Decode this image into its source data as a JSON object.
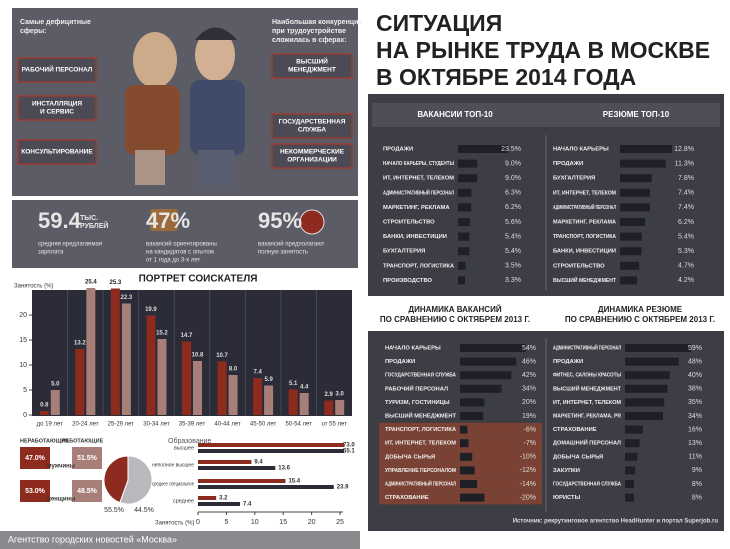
{
  "title": [
    "СИТУАЦИЯ",
    "НА РЫНКЕ ТРУДА В МОСКВЕ",
    "В ОКТЯБРЕ 2014 ГОДА"
  ],
  "deficit": {
    "heading": [
      "Самые дефицитные",
      "сферы:"
    ],
    "items": [
      [
        "РАБОЧИЙ ПЕРСОНАЛ"
      ],
      [
        "ИНСТАЛЛЯЦИЯ",
        "И СЕРВИС"
      ],
      [
        "КОНСУЛЬТИРОВАНИЕ"
      ]
    ]
  },
  "competition": {
    "heading": [
      "Наибольшая конкуренция",
      "при трудоустройстве",
      "сложилась в сферах:"
    ],
    "items": [
      [
        "ВЫСШИЙ",
        "МЕНЕДЖМЕНТ"
      ],
      [
        "ГОСУДАРСТВЕННАЯ",
        "СЛУЖБА"
      ],
      [
        "НЕКОММЕРЧЕСКИЕ",
        "ОРГАНИЗАЦИИ"
      ]
    ]
  },
  "stats": [
    {
      "value": "59.4",
      "unit": [
        "ТЫС.",
        "РУБЛЕЙ"
      ],
      "caption": [
        "средняя предлагаемая",
        "зарплата"
      ]
    },
    {
      "value": "47%",
      "caption": [
        "вакансий ориентированы",
        "на кандидатов с опытом",
        "от 1 года до 3-х лет"
      ]
    },
    {
      "value": "95%",
      "caption": [
        "вакансий предполагают",
        "полную занятость"
      ]
    }
  ],
  "gender": {
    "rows": [
      {
        "label": "мужчины",
        "values": [
          "47.0%",
          "51.5%"
        ]
      },
      {
        "label": "женщины",
        "values": [
          "53.0%",
          "48.5%"
        ]
      }
    ]
  },
  "source": "Источник: рекрутинговое агентство HeadHunter и портал Superjob.ru",
  "footer": "Агентство городских новостей «Москва»",
  "chart_data": [
    {
      "type": "hbar",
      "title": "ВАКАНСИИ ТОП-10",
      "color": "#1f2027",
      "categories": [
        "ПРОДАЖИ",
        "НАЧАЛО КАРЬЕРЫ, СТУДЕНТЫ",
        "ИТ, ИНТЕРНЕТ, ТЕЛЕКОМ",
        "АДМИНИСТРАТИВНЫЙ ПЕРСОНАЛ",
        "МАРКЕТИНГ, РЕКЛАМА",
        "СТРОИТЕЛЬСТВО",
        "БАНКИ, ИНВЕСТИЦИИ",
        "БУХГАЛТЕРИЯ",
        "ТРАНСПОРТ, ЛОГИСТИКА",
        "ПРОИЗВОДСТВО"
      ],
      "values": [
        23.5,
        9.0,
        9.0,
        6.3,
        6.2,
        5.6,
        5.4,
        5.4,
        3.5,
        3.3
      ],
      "value_labels": [
        "23.5%",
        "9.0%",
        "9.0%",
        "6.3%",
        "6.2%",
        "5.6%",
        "5.4%",
        "5.4%",
        "3.5%",
        "3.3%"
      ]
    },
    {
      "type": "hbar",
      "title": "РЕЗЮМЕ ТОП-10",
      "color": "#1f2027",
      "categories": [
        "НАЧАЛО КАРЬЕРЫ",
        "ПРОДАЖИ",
        "БУХГАЛТЕРИЯ",
        "ИТ, ИНТЕРНЕТ, ТЕЛЕКОМ",
        "АДМИНИСТРАТИВНЫЙ ПЕРСОНАЛ",
        "МАРКЕТИНГ, РЕКЛАМА",
        "ТРАНСПОРТ, ЛОГИСТИКА",
        "БАНКИ, ИНВЕСТИЦИИ",
        "СТРОИТЕЛЬСТВО",
        "ВЫСШИЙ МЕНЕДЖМЕНТ"
      ],
      "values": [
        12.8,
        11.3,
        7.8,
        7.4,
        7.4,
        6.2,
        5.4,
        5.3,
        4.7,
        4.2
      ],
      "value_labels": [
        "12.8%",
        "11.3%",
        "7.8%",
        "7.4%",
        "7.4%",
        "6.2%",
        "5.4%",
        "5.3%",
        "4.7%",
        "4.2%"
      ]
    },
    {
      "type": "hbar",
      "title": [
        "ДИНАМИКА ВАКАНСИЙ",
        "ПО СРАВНЕНИЮ С ОКТЯБРЕМ 2013 Г."
      ],
      "color": "#1f2027",
      "negative_color": "#7a4234",
      "categories": [
        "НАЧАЛО КАРЬЕРЫ",
        "ПРОДАЖИ",
        "ГОСУДАРСТВЕННАЯ СЛУЖБА",
        "РАБОЧИЙ ПЕРСОНАЛ",
        "ТУРИЗМ, ГОСТИНИЦЫ",
        "ВЫСШИЙ МЕНЕДЖМЕНТ",
        "ТРАНСПОРТ, ЛОГИСТИКА",
        "ИТ, ИНТЕРНЕТ, ТЕЛЕКОМ",
        "ДОБЫЧА СЫРЬЯ",
        "УПРАВЛЕНИЕ ПЕРСОНАЛОМ",
        "АДМИНИСТРАТИВНЫЙ ПЕРСОНАЛ",
        "СТРАХОВАНИЕ"
      ],
      "values": [
        54,
        46,
        42,
        34,
        20,
        19,
        -6,
        -7,
        -10,
        -12,
        -14,
        -20
      ],
      "value_labels": [
        "54%",
        "46%",
        "42%",
        "34%",
        "20%",
        "19%",
        "-6%",
        "-7%",
        "-10%",
        "-12%",
        "-14%",
        "-20%"
      ]
    },
    {
      "type": "hbar",
      "title": [
        "ДИНАМИКА РЕЗЮМЕ",
        "ПО СРАВНЕНИЮ С ОКТЯБРЕМ 2013 Г."
      ],
      "color": "#1f2027",
      "negative_color": "#7a4234",
      "categories": [
        "АДМИНИСТРАТИВНЫЙ ПЕРСОНАЛ",
        "ПРОДАЖИ",
        "ФИТНЕС, САЛОНЫ КРАСОТЫ",
        "ВЫСШИЙ МЕНЕДЖМЕНТ",
        "ИТ, ИНТЕРНЕТ, ТЕЛЕКОМ",
        "МАРКЕТИНГ, РЕКЛАМА, PR",
        "СТРАХОВАНИЕ",
        "ДОМАШНИЙ ПЕРСОНАЛ",
        "ДОБЫЧА СЫРЬЯ",
        "ЗАКУПКИ",
        "ГОСУДАРСТВЕННАЯ СЛУЖБА",
        "ЮРИСТЫ"
      ],
      "values": [
        59,
        48,
        40,
        38,
        35,
        34,
        16,
        13,
        11,
        9,
        8,
        8
      ],
      "value_labels": [
        "59%",
        "48%",
        "40%",
        "38%",
        "35%",
        "34%",
        "16%",
        "13%",
        "11%",
        "9%",
        "8%",
        "8%"
      ]
    },
    {
      "type": "bar",
      "title": "ПОРТРЕТ СОИСКАТЕЛЯ",
      "y_label": "Занятость (%)",
      "categories": [
        "до 19 лет",
        "20-24 лет",
        "25-29 лет",
        "30-34 лет",
        "35-39 лет",
        "40-44 лет",
        "45-50 лет",
        "50-54 лет",
        "от 55 лет"
      ],
      "series": [
        {
          "name": "НЕРАБОТАЮЩИЕ",
          "color": "#8e2b1f",
          "values": [
            0.8,
            13.2,
            25.3,
            19.9,
            14.7,
            10.7,
            7.4,
            5.1,
            2.9
          ],
          "value_labels": [
            "0.8",
            "13.2",
            "25.3",
            "19.9",
            "14.7",
            "10.7",
            "7.4",
            "5.1",
            "2.9"
          ]
        },
        {
          "name": "РАБОТАЮЩИЕ",
          "color": "#a87f78",
          "values": [
            5.0,
            25.4,
            22.3,
            15.2,
            10.8,
            8.0,
            5.9,
            4.4,
            3.0
          ],
          "value_labels": [
            "5.0",
            "25.4",
            "22.3",
            "15.2",
            "10.8",
            "8.0",
            "5.9",
            "4.4",
            "3.0"
          ]
        }
      ],
      "ylim": [
        0,
        25
      ],
      "yticks": [
        0,
        5,
        10,
        15,
        20
      ]
    },
    {
      "type": "pie",
      "values": [
        55.5,
        44.5
      ],
      "value_labels": [
        "55.5%",
        "44.5%"
      ],
      "colors": [
        "#b9b9bd",
        "#8e2b1f"
      ]
    },
    {
      "type": "hbar_grouped",
      "title": "Образование",
      "x_label": "Занятость (%)",
      "categories": [
        "высшее",
        "неполное высшее",
        "среднее специальное",
        "среднее"
      ],
      "series": [
        {
          "color": "#8e2b1f",
          "values": [
            73.0,
            9.4,
            15.4,
            3.2
          ],
          "value_labels": [
            "73.0",
            "9.4",
            "15.4",
            "3.2"
          ]
        },
        {
          "color": "#2b2c38",
          "values": [
            55.1,
            13.6,
            23.9,
            7.4
          ],
          "value_labels": [
            "55.1",
            "13.6",
            "23.9",
            "7.4"
          ]
        }
      ],
      "xlim": [
        0,
        25
      ],
      "xticks": [
        0,
        5,
        10,
        15,
        20,
        25
      ]
    }
  ]
}
